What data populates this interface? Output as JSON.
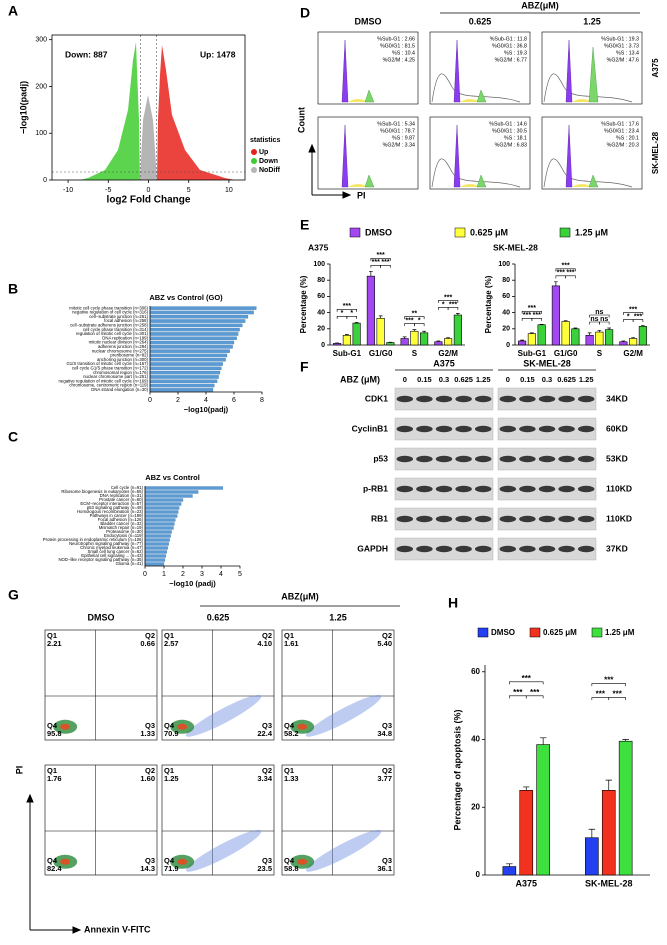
{
  "panel_a": {
    "label": "A",
    "y_label": "−log10(padj)",
    "x_label": "log2 Fold Change",
    "xlim": [
      -12,
      12
    ],
    "ylim": [
      0,
      310
    ],
    "xticks": [
      -10,
      -5,
      0,
      5,
      10
    ],
    "yticks": [
      0,
      100,
      200,
      300
    ],
    "down": "Down: 887",
    "up": "Up: 1478",
    "legend_title": "statistics",
    "legend": [
      {
        "name": "Up",
        "color": "#e8221b"
      },
      {
        "name": "Down",
        "color": "#3fcc2e"
      },
      {
        "name": "NoDiff",
        "color": "#b5b5b5"
      }
    ]
  },
  "panel_b": {
    "label": "B",
    "title": "ABZ  vs  Control  (GO)",
    "x_label": "−log10(padj)",
    "xlim": [
      0,
      8
    ],
    "xticks": [
      0,
      2,
      4,
      6,
      8
    ],
    "color": "#5b9bd5",
    "categories": [
      "mitotic cell cycle phase transition (n=306)",
      "negative regulation of cell cycle (n=316)",
      "cell−substrate junction (n=261)",
      "focal adhesion (n=258)",
      "cell−substrate adherens junction (n=258)",
      "cell cycle phase transition (n=314)",
      "regulation of mitotic cell cycle (n=301)",
      "DNA replication (n=199)",
      "mitotic nuclear division (n=264)",
      "adherens junction (n=294)",
      "nuclear chromosome (n=275)",
      "preribosome (n=82)",
      "anchoring junction (n=300)",
      "G1/S transition of mitotic cell cycle (n=167)",
      "cell cycle G1/S phase transition (n=172)",
      "chromosomal region (n=176)",
      "nuclear chromosome part (n=251)",
      "negative regulation of mitotic cell cycle (n=169)",
      "chromosome, centromeric region (n=119)",
      "DNA strand elongation (n=30)"
    ],
    "values": [
      7.6,
      7.4,
      7.0,
      6.8,
      6.6,
      6.4,
      6.3,
      6.2,
      6.0,
      5.9,
      5.7,
      5.5,
      5.4,
      5.2,
      5.1,
      5.0,
      4.9,
      4.8,
      4.6,
      4.5
    ]
  },
  "panel_c": {
    "label": "C",
    "title": "ABZ  vs  Control",
    "x_label": "−log10 (padj)",
    "xlim": [
      0,
      5
    ],
    "xticks": [
      0,
      1,
      2,
      3,
      4,
      5
    ],
    "color": "#5b9bd5",
    "categories": [
      "Cell cycle (n=91)",
      "Ribosome biogenesis in eukaryotes (n=55)",
      "DNA replication (n=31)",
      "Prostate cancer (n=60)",
      "ECM−receptor interaction (n=57)",
      "p53 signaling pathway (n=49)",
      "Homologous recombination (n=23)",
      "Pathways in cancer (n=199)",
      "Focal adhesion (n=126)",
      "Bladder cancer (n=32)",
      "Mismatch repair (n=19)",
      "Proteasome (n=30)",
      "Endocytosis (n=119)",
      "Protein processing in endoplasmic reticulum (n=106)",
      "Neurotrophin signaling pathway (n=77)",
      "Chronic myeloid leukemia (n=47)",
      "Small cell lung cancer (n=62)",
      "Epithelial cell signaling ... (n=43)",
      "NOD−like receptor signaling pathway (n=35)",
      "Glioma (n=41)"
    ],
    "values": [
      4.1,
      2.8,
      2.5,
      2.0,
      1.9,
      1.8,
      1.75,
      1.7,
      1.6,
      1.55,
      1.5,
      1.4,
      1.35,
      1.3,
      1.25,
      1.2,
      1.15,
      1.1,
      1.05,
      1.0
    ]
  },
  "panel_d": {
    "label": "D",
    "treatment": "ABZ(μM)",
    "columns": [
      "DMSO",
      "0.625",
      "1.25"
    ],
    "rows": [
      "A375",
      "SK-MEL-28"
    ],
    "y_label": "Count",
    "x_label": "PI",
    "stats": [
      [
        [
          "%Sub-G1 : 2.66",
          "%G0/G1 : 81.5",
          "%S : 10.4",
          "%G2/M : 4.25"
        ],
        [
          "%Sub-G1 : 11.8",
          "%G0/G1 : 36.8",
          "%S : 19.3",
          "%G2/M : 6.77"
        ],
        [
          "%Sub-G1 : 19.3",
          "%G0/G1 : 3.73",
          "%S : 13.4",
          "%G2/M : 47.6"
        ]
      ],
      [
        [
          "%Sub-G1 : 5.34",
          "%G0/G1 : 78.7",
          "%S : 9.87",
          "%G2/M : 3.34"
        ],
        [
          "%Sub-G1 : 14.6",
          "%G0/G1 : 30.5",
          "%S : 18.1",
          "%G2/M : 6.83"
        ],
        [
          "%Sub-G1 : 17.6",
          "%G0/G1 : 23.4",
          "%S : 20.1",
          "%G2/M : 20.3"
        ]
      ]
    ]
  },
  "panel_e": {
    "label": "E",
    "legend": [
      {
        "name": "DMSO",
        "color": "#a347f0"
      },
      {
        "name": "0.625  μM",
        "color": "#ffff3a"
      },
      {
        "name": "1.25  μM",
        "color": "#3bd13b"
      }
    ],
    "y_label": "Percentage (%)",
    "ylim": [
      0,
      100
    ],
    "yticks": [
      0,
      20,
      40,
      60,
      80,
      100
    ],
    "categories": [
      "Sub-G1",
      "G1/G0",
      "S",
      "G2/M"
    ],
    "charts": [
      {
        "title": "A375",
        "series": [
          {
            "values": [
              2,
              85,
              8,
              4
            ],
            "errors": [
              0.5,
              6,
              2,
              1
            ]
          },
          {
            "values": [
              12,
              33,
              17,
              8
            ],
            "errors": [
              1,
              3,
              2,
              1
            ]
          },
          {
            "values": [
              27,
              3,
              15,
              37
            ],
            "errors": [
              1,
              0.5,
              2,
              2
            ]
          }
        ],
        "significance": [
          [
            "***",
            "*",
            "*"
          ],
          [
            "***",
            "***",
            "***"
          ],
          [
            "**",
            "***",
            "*"
          ],
          [
            "***",
            "*",
            "***"
          ]
        ]
      },
      {
        "title": "SK-MEL-28",
        "series": [
          {
            "values": [
              5,
              73,
              12,
              4
            ],
            "errors": [
              1,
              5,
              3,
              1
            ]
          },
          {
            "values": [
              14,
              29,
              16,
              8
            ],
            "errors": [
              1,
              1,
              2,
              1
            ]
          },
          {
            "values": [
              25,
              20,
              19,
              23
            ],
            "errors": [
              0.5,
              1,
              2,
              1
            ]
          }
        ],
        "significance": [
          [
            "***",
            "***",
            "***"
          ],
          [
            "***",
            "***",
            "***"
          ],
          [
            "ns",
            "ns",
            "ns"
          ],
          [
            "***",
            "*",
            "***"
          ]
        ]
      }
    ]
  },
  "panel_f": {
    "label": "F",
    "treatment": "ABZ (μM)",
    "cell_lines": [
      "A375",
      "SK-MEL-28"
    ],
    "doses": [
      "0",
      "0.15",
      "0.3",
      "0.625",
      "1.25"
    ],
    "proteins": [
      {
        "name": "CDK1",
        "size": "34KD"
      },
      {
        "name": "CyclinB1",
        "size": "60KD"
      },
      {
        "name": "p53",
        "size": "53KD"
      },
      {
        "name": "p-RB1",
        "size": "110KD"
      },
      {
        "name": "RB1",
        "size": "110KD"
      },
      {
        "name": "GAPDH",
        "size": "37KD"
      }
    ]
  },
  "panel_g": {
    "label": "G",
    "treatment": "ABZ(μM)",
    "columns": [
      "DMSO",
      "0.625",
      "1.25"
    ],
    "quadrants": [
      "Q1",
      "Q2",
      "Q3",
      "Q4"
    ],
    "y_label": "PI",
    "x_label": "Annexin V-FITC",
    "values": [
      [
        [
          "2.21",
          "0.66",
          "1.33",
          "95.8"
        ],
        [
          "2.57",
          "4.10",
          "22.4",
          "70.9"
        ],
        [
          "1.61",
          "5.40",
          "34.8",
          "58.2"
        ]
      ],
      [
        [
          "1.76",
          "1.60",
          "14.3",
          "82.4"
        ],
        [
          "1.25",
          "3.34",
          "23.5",
          "71.9"
        ],
        [
          "1.33",
          "3.77",
          "36.1",
          "58.8"
        ]
      ]
    ]
  },
  "panel_h": {
    "label": "H",
    "legend": [
      {
        "name": "DMSO",
        "color": "#2341f0"
      },
      {
        "name": "0.625 μM",
        "color": "#f2321e"
      },
      {
        "name": "1.25 μM",
        "color": "#3ee03e"
      }
    ],
    "y_label": "Percentage of apoptosis (%)",
    "ylim": [
      0,
      62
    ],
    "yticks": [
      0,
      20,
      40,
      60
    ],
    "categories": [
      "A375",
      "SK-MEL-28"
    ],
    "series": [
      {
        "values": [
          2.5,
          11
        ],
        "errors": [
          0.8,
          2.5
        ]
      },
      {
        "values": [
          25,
          25
        ],
        "errors": [
          1,
          3
        ]
      },
      {
        "values": [
          38.5,
          39.5
        ],
        "errors": [
          2,
          0.5
        ]
      }
    ],
    "significance": [
      [
        "***",
        "***",
        "***"
      ],
      [
        "***",
        "***",
        "***"
      ]
    ]
  }
}
